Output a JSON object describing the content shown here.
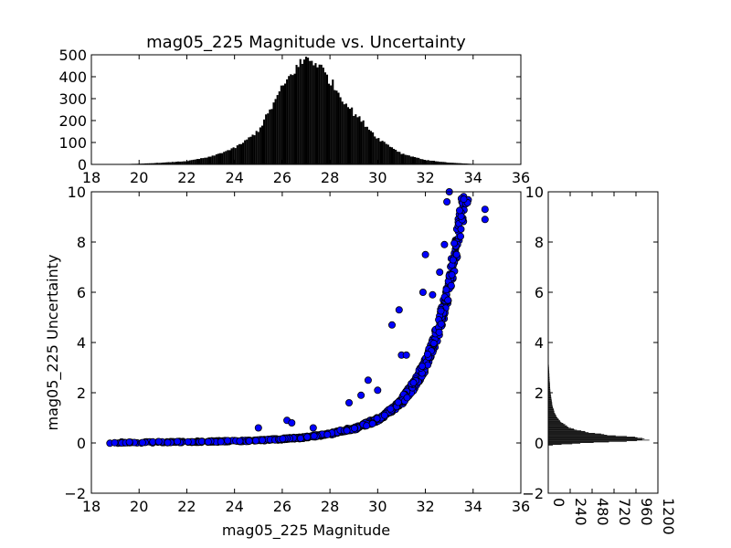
{
  "chart_data": [
    {
      "type": "scatter",
      "name": "main-scatter",
      "title": "",
      "xlabel": "mag05_225 Magnitude",
      "ylabel": "mag05_225 Uncertainty",
      "xlim": [
        18,
        36
      ],
      "ylim": [
        -2,
        10
      ],
      "xticks": [
        "18",
        "20",
        "22",
        "24",
        "26",
        "28",
        "30",
        "32",
        "34",
        "36"
      ],
      "yticks": [
        "−2",
        "0",
        "2",
        "4",
        "6",
        "8",
        "10"
      ],
      "marker_color": "#0000ff",
      "marker_edge": "#000000",
      "trend": {
        "description_free": true,
        "x": [
          18.4,
          20.0,
          22.0,
          24.0,
          25.0,
          26.0,
          27.0,
          28.0,
          29.0,
          30.0,
          30.5,
          31.0,
          31.5,
          32.0,
          32.3,
          32.6,
          32.9,
          33.1,
          33.3,
          33.5,
          33.7
        ],
        "y": [
          0.01,
          0.02,
          0.04,
          0.07,
          0.1,
          0.15,
          0.22,
          0.35,
          0.55,
          0.9,
          1.2,
          1.6,
          2.2,
          3.0,
          3.7,
          4.6,
          5.6,
          6.6,
          7.6,
          8.7,
          9.9
        ]
      },
      "outliers": {
        "x": [
          25.0,
          26.2,
          26.4,
          27.3,
          28.8,
          29.3,
          29.6,
          30.0,
          30.6,
          30.9,
          31.0,
          31.2,
          31.5,
          31.9,
          32.0,
          32.3,
          32.6,
          32.8,
          34.5,
          34.5,
          32.9,
          33.0
        ],
        "y": [
          0.6,
          0.9,
          0.8,
          0.6,
          1.6,
          1.9,
          2.5,
          2.1,
          4.7,
          5.3,
          3.5,
          3.5,
          2.4,
          6.0,
          7.5,
          5.9,
          6.8,
          7.9,
          8.9,
          9.3,
          9.6,
          10.0
        ]
      }
    },
    {
      "type": "bar",
      "name": "top-histogram",
      "title": "mag05_225 Magnitude vs. Uncertainty",
      "xlabel": "",
      "ylabel": "",
      "xlim": [
        18,
        36
      ],
      "ylim": [
        0,
        500
      ],
      "xticks": [
        "18",
        "20",
        "22",
        "24",
        "26",
        "28",
        "30",
        "32",
        "34",
        "36"
      ],
      "yticks": [
        "0",
        "100",
        "200",
        "300",
        "400",
        "500"
      ],
      "bar_color": "#000000",
      "distribution": {
        "x": [
          18,
          19,
          20,
          21,
          22,
          23,
          24,
          24.5,
          25,
          25.5,
          26,
          26.5,
          27,
          27.5,
          28,
          28.5,
          29,
          29.5,
          30,
          30.5,
          31,
          32,
          33,
          34,
          34.5
        ],
        "count": [
          0,
          1,
          3,
          8,
          15,
          35,
          75,
          110,
          155,
          250,
          350,
          430,
          485,
          460,
          385,
          305,
          235,
          180,
          120,
          85,
          50,
          20,
          8,
          2,
          0
        ]
      }
    },
    {
      "type": "bar",
      "name": "right-histogram",
      "orientation": "horizontal",
      "title": "",
      "xlabel": "",
      "ylabel": "",
      "xlim": [
        0,
        1200
      ],
      "ylim": [
        -2,
        10
      ],
      "xticks": [
        "0",
        "240",
        "480",
        "720",
        "960",
        "1200"
      ],
      "yticks": [
        "−2",
        "0",
        "2",
        "4",
        "6",
        "8",
        "10"
      ],
      "bar_color": "#000000",
      "distribution": {
        "y": [
          -0.1,
          0.0,
          0.1,
          0.2,
          0.25,
          0.3,
          0.4,
          0.5,
          0.6,
          0.8,
          1.0,
          1.2,
          1.5,
          2.0,
          2.5,
          3.0,
          3.4
        ],
        "count": [
          0,
          400,
          1100,
          1000,
          900,
          700,
          480,
          330,
          240,
          150,
          100,
          70,
          45,
          25,
          15,
          8,
          0
        ]
      }
    }
  ]
}
